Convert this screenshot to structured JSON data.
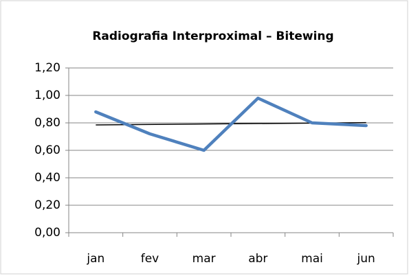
{
  "chart_data": {
    "type": "line",
    "title": "Radiografia Interproximal – Bitewing",
    "categories": [
      "jan",
      "fev",
      "mar",
      "abr",
      "mai",
      "jun"
    ],
    "series": [
      {
        "color": "#4f81bd",
        "values": [
          0.88,
          0.72,
          0.6,
          0.98,
          0.8,
          0.78
        ]
      }
    ],
    "trendline": true,
    "trendline_color": "#000000",
    "ylim": [
      0,
      1.2
    ],
    "yticks": [
      {
        "value": 0,
        "label": "0,00"
      },
      {
        "value": 0.2,
        "label": "0,20"
      },
      {
        "value": 0.4,
        "label": "0,40"
      },
      {
        "value": 0.6,
        "label": "0,60"
      },
      {
        "value": 0.8,
        "label": "0,80"
      },
      {
        "value": 1.0,
        "label": "1,00"
      },
      {
        "value": 1.2,
        "label": "1,20"
      }
    ],
    "grid": true
  }
}
